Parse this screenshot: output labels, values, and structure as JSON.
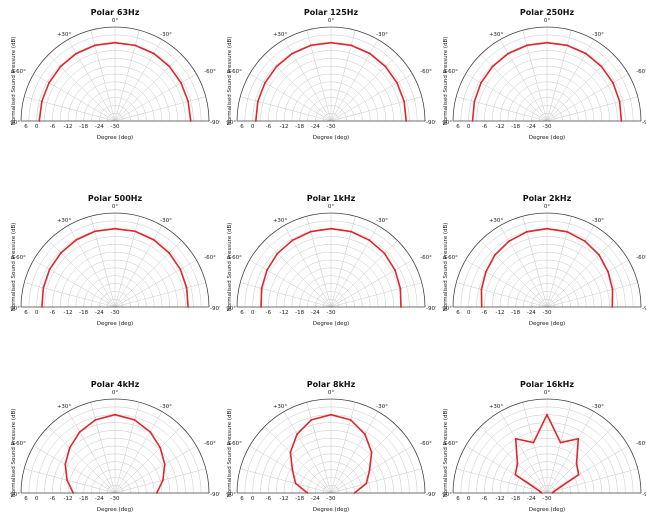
{
  "chart_data": [
    {
      "type": "polar",
      "title": "Polar 63Hz",
      "xlabel": "Degree (deg)",
      "ylabel": "Normalised Sound Pressure (dB)",
      "angles": [
        -90,
        -75,
        -60,
        -45,
        -30,
        -15,
        0,
        15,
        30,
        45,
        60,
        75,
        90
      ],
      "values": [
        -1,
        -1,
        -0.8,
        -0.5,
        -0.2,
        0,
        0,
        0,
        -0.2,
        -0.5,
        -0.8,
        -1,
        -1
      ]
    },
    {
      "type": "polar",
      "title": "Polar 125Hz",
      "xlabel": "Degree (deg)",
      "ylabel": "Normalised Sound Pressure (dB)",
      "angles": [
        -90,
        -75,
        -60,
        -45,
        -30,
        -15,
        0,
        15,
        30,
        45,
        60,
        75,
        90
      ],
      "values": [
        -1.2,
        -1,
        -0.8,
        -0.5,
        -0.2,
        0,
        0,
        0,
        -0.2,
        -0.5,
        -0.8,
        -1,
        -1.2
      ]
    },
    {
      "type": "polar",
      "title": "Polar 250Hz",
      "xlabel": "Degree (deg)",
      "ylabel": "Normalised Sound Pressure (dB)",
      "angles": [
        -90,
        -75,
        -60,
        -45,
        -30,
        -15,
        0,
        15,
        30,
        45,
        60,
        75,
        90
      ],
      "values": [
        -1.5,
        -1.2,
        -0.8,
        -0.5,
        -0.2,
        0,
        0,
        0,
        -0.2,
        -0.5,
        -0.8,
        -1.2,
        -1.5
      ]
    },
    {
      "type": "polar",
      "title": "Polar 500Hz",
      "xlabel": "Degree (deg)",
      "ylabel": "Normalised Sound Pressure (dB)",
      "angles": [
        -90,
        -75,
        -60,
        -45,
        -30,
        -15,
        0,
        15,
        30,
        45,
        60,
        75,
        90
      ],
      "values": [
        -2,
        -1.6,
        -1.1,
        -0.7,
        -0.3,
        0,
        0,
        0,
        -0.3,
        -0.7,
        -1.1,
        -1.6,
        -2
      ]
    },
    {
      "type": "polar",
      "title": "Polar 1kHz",
      "xlabel": "Degree (deg)",
      "ylabel": "Normalised Sound Pressure (dB)",
      "angles": [
        -90,
        -75,
        -60,
        -45,
        -30,
        -15,
        0,
        15,
        30,
        45,
        60,
        75,
        90
      ],
      "values": [
        -3.2,
        -2.5,
        -1.7,
        -1,
        -0.5,
        -0.1,
        0,
        -0.1,
        -0.5,
        -1,
        -1.7,
        -2.5,
        -3.2
      ]
    },
    {
      "type": "polar",
      "title": "Polar 2kHz",
      "xlabel": "Degree (deg)",
      "ylabel": "Normalised Sound Pressure (dB)",
      "angles": [
        -90,
        -75,
        -60,
        -45,
        -30,
        -15,
        0,
        15,
        30,
        45,
        60,
        75,
        90
      ],
      "values": [
        -5,
        -4,
        -3,
        -1.8,
        -0.9,
        -0.2,
        0,
        -0.2,
        -0.9,
        -1.8,
        -3,
        -4,
        -5
      ]
    },
    {
      "type": "polar",
      "title": "Polar 4kHz",
      "xlabel": "Degree (deg)",
      "ylabel": "Normalised Sound Pressure (dB)",
      "angles": [
        -90,
        -75,
        -60,
        -45,
        -30,
        -15,
        0,
        15,
        30,
        45,
        60,
        75,
        90
      ],
      "values": [
        -14,
        -11,
        -8,
        -5.5,
        -3,
        -1,
        0,
        -1,
        -3,
        -5.5,
        -8,
        -11,
        -14
      ]
    },
    {
      "type": "polar",
      "title": "Polar 8kHz",
      "xlabel": "Degree (deg)",
      "ylabel": "Normalised Sound Pressure (dB)",
      "angles": [
        -90,
        -75,
        -60,
        -45,
        -30,
        -15,
        0,
        15,
        30,
        45,
        60,
        75,
        90
      ],
      "values": [
        -21,
        -16,
        -13,
        -8,
        -4,
        -1,
        0,
        -1,
        -4,
        -8,
        -13,
        -16,
        -21
      ]
    },
    {
      "type": "polar",
      "title": "Polar 16kHz",
      "xlabel": "Degree (deg)",
      "ylabel": "Normalised Sound Pressure (dB)",
      "angles": [
        -90,
        -75,
        -60,
        -45,
        -30,
        -15,
        0,
        15,
        30,
        45,
        60,
        75,
        90
      ],
      "values": [
        -28,
        -27,
        -16,
        -14,
        -6,
        -10,
        0,
        -10,
        -6,
        -14,
        -16,
        -27,
        -28
      ]
    }
  ],
  "axis": {
    "rmin": -30,
    "rmax": 6,
    "ring_labels": [
      "6",
      "0",
      "-6",
      "-12",
      "-18",
      "-24",
      "-30"
    ],
    "angle_labels": [
      "+90°",
      "+60°",
      "+30°",
      "0°",
      "-30°",
      "-60°",
      "-90°"
    ]
  },
  "colors": {
    "curve": "#e0262a",
    "grid": "#c8c8c8",
    "outline": "#444444"
  }
}
